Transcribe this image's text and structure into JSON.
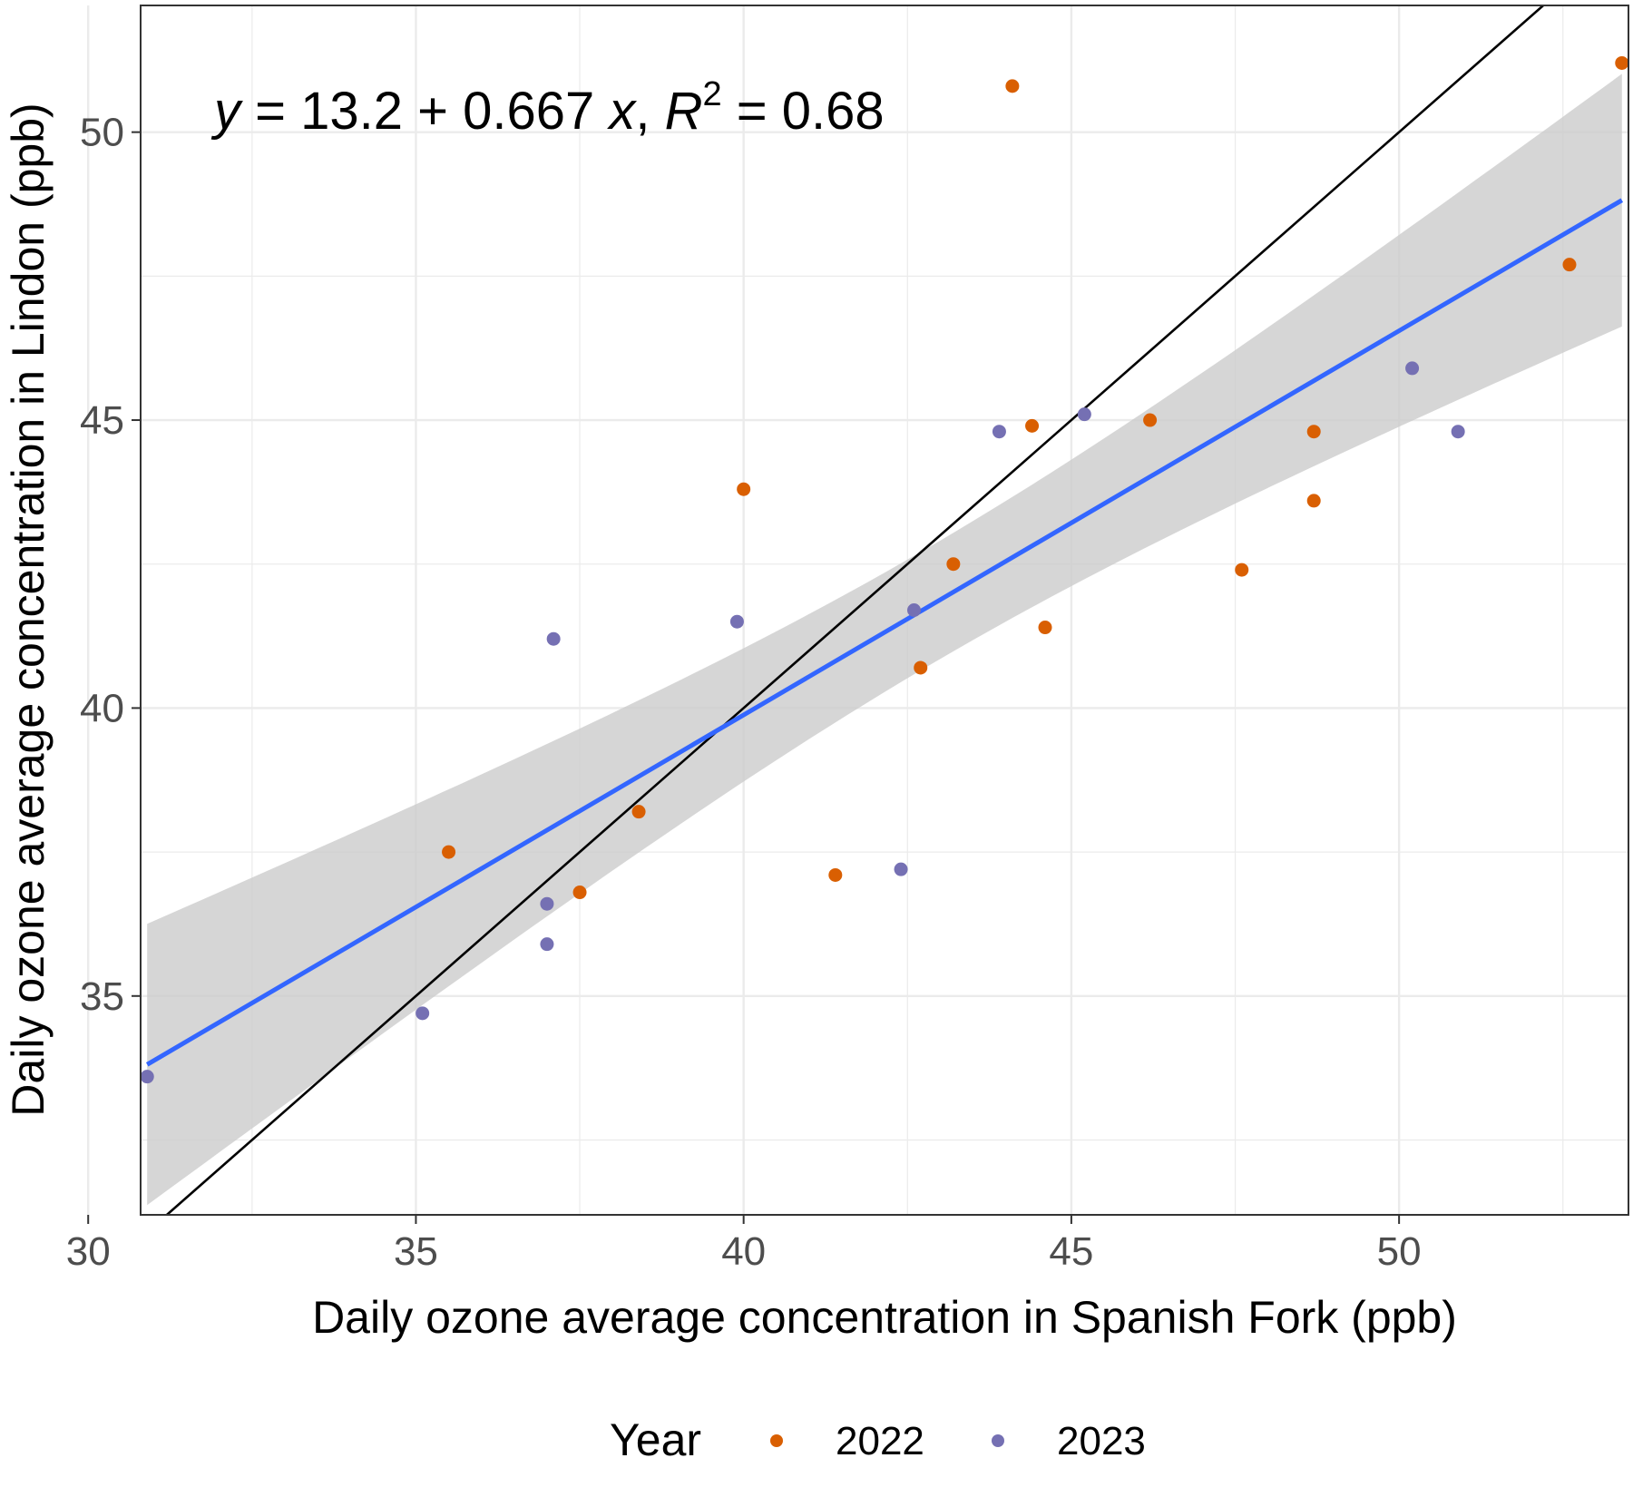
{
  "chart_data": {
    "type": "scatter",
    "xlabel": "Daily ozone average concentration in Spanish Fork (ppb)",
    "ylabel": "Daily ozone average concentration in Lindon (ppb)",
    "xlim": [
      30.8,
      53.5
    ],
    "ylim": [
      31.2,
      52.2
    ],
    "x_ticks": [
      30,
      35,
      40,
      45,
      50
    ],
    "y_ticks": [
      35,
      40,
      45,
      50
    ],
    "grid": true,
    "legend": {
      "title": "Year",
      "placement": "bottom",
      "entries": [
        {
          "label": "2022",
          "color": "#d95f02"
        },
        {
          "label": "2023",
          "color": "#7570b3"
        }
      ]
    },
    "annotation": {
      "y_var": "y",
      "eq_body": " = 13.2 + 0.667 ",
      "x_var": "x",
      "sep": ", ",
      "r_var": "R",
      "r_exp": "2",
      "r_value": " = 0.68"
    },
    "regression": {
      "intercept": 13.2,
      "slope": 0.667,
      "r2": 0.68,
      "color": "#3366ff",
      "band_color": "#cccccc"
    },
    "identity_line": {
      "slope": 1,
      "intercept": 0,
      "color": "#000000"
    },
    "series": [
      {
        "name": "2022",
        "color": "#d95f02",
        "points": [
          [
            35.5,
            37.5
          ],
          [
            37.5,
            36.8
          ],
          [
            38.4,
            38.2
          ],
          [
            40.0,
            43.8
          ],
          [
            41.4,
            37.1
          ],
          [
            42.7,
            40.7
          ],
          [
            43.2,
            42.5
          ],
          [
            44.1,
            50.8
          ],
          [
            44.4,
            44.9
          ],
          [
            44.6,
            41.4
          ],
          [
            46.2,
            45.0
          ],
          [
            47.6,
            42.4
          ],
          [
            48.7,
            44.8
          ],
          [
            48.7,
            43.6
          ],
          [
            52.6,
            47.7
          ],
          [
            53.4,
            51.2
          ]
        ]
      },
      {
        "name": "2023",
        "color": "#7570b3",
        "points": [
          [
            30.9,
            33.6
          ],
          [
            35.1,
            34.7
          ],
          [
            37.0,
            36.6
          ],
          [
            37.0,
            35.9
          ],
          [
            37.1,
            41.2
          ],
          [
            39.9,
            41.5
          ],
          [
            42.4,
            37.2
          ],
          [
            42.6,
            41.7
          ],
          [
            43.9,
            44.8
          ],
          [
            45.2,
            45.1
          ],
          [
            50.2,
            45.9
          ],
          [
            50.9,
            44.8
          ]
        ]
      }
    ]
  }
}
